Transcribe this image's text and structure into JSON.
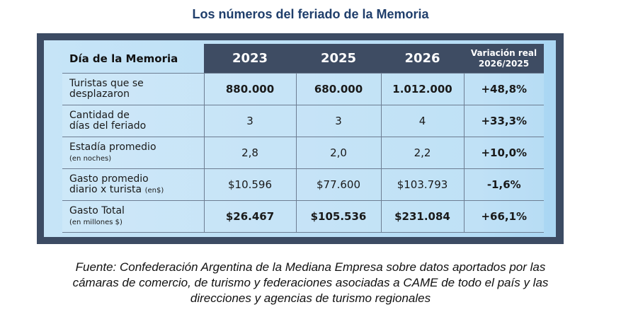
{
  "title": "Los números del feriado de la Memoria",
  "table": {
    "headers": [
      "Día de la Memoria",
      "2023",
      "2025",
      "2026",
      "Variación real",
      "2026/2025"
    ],
    "rows": [
      {
        "label": "Turistas que se",
        "label2": "desplazaron",
        "sub": "",
        "values": [
          "880.000",
          "680.000",
          "1.012.000",
          "+48,8%"
        ],
        "bold": true
      },
      {
        "label": "Cantidad de",
        "label2": "días del feriado",
        "sub": "",
        "values": [
          "3",
          "3",
          "4",
          "+33,3%"
        ],
        "bold": false
      },
      {
        "label": "Estadía promedio",
        "label2": "",
        "sub": "(en noches)",
        "values": [
          "2,8",
          "2,0",
          "2,2",
          "+10,0%"
        ],
        "bold": false
      },
      {
        "label": "Gasto promedio",
        "label2": "diario x turista",
        "sub": "(en$)",
        "values": [
          "$10.596",
          "$77.600",
          "$103.793",
          "-1,6%"
        ],
        "bold": false
      },
      {
        "label": "Gasto Total",
        "label2": "",
        "sub": "(en millones $)",
        "values": [
          "$26.467",
          "$105.536",
          "$231.084",
          "+66,1%"
        ],
        "bold": true
      }
    ]
  },
  "footer": [
    "Fuente: Confederación Argentina de la Mediana Empresa sobre datos aportados por las",
    "cámaras de comercio, de turismo y federaciones asociadas a CAME de todo el país y las",
    "direcciones y agencias de turismo regionales"
  ]
}
